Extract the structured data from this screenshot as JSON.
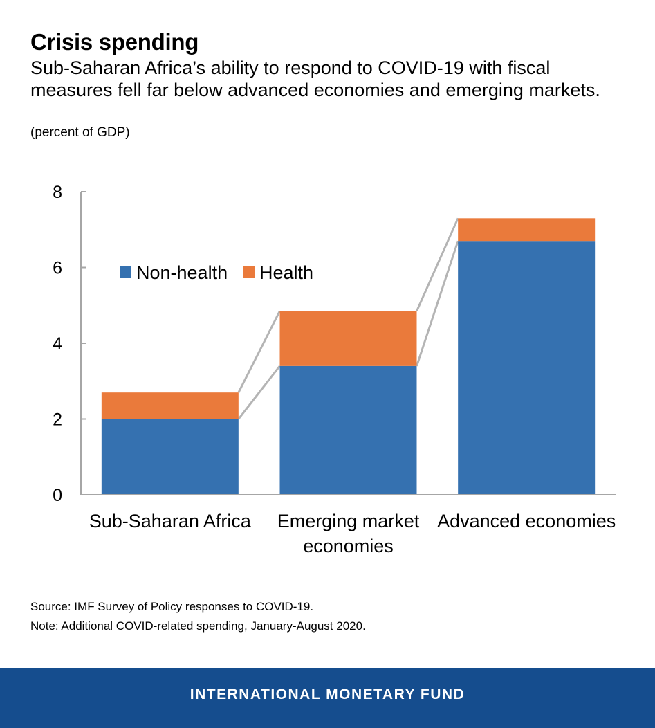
{
  "header": {
    "title": "Crisis spending",
    "subtitle": "Sub-Saharan Africa’s ability to respond to COVID-19 with fiscal measures fell far below advanced economies and emerging markets.",
    "unit": "(percent of GDP)"
  },
  "chart_data": {
    "type": "bar",
    "stacked": true,
    "categories": [
      [
        "Sub-Saharan Africa"
      ],
      [
        "Emerging market",
        "economies"
      ],
      [
        "Advanced economies"
      ]
    ],
    "series": [
      {
        "name": "Non-health",
        "color": "#3571b0",
        "values": [
          2.0,
          3.4,
          6.7
        ]
      },
      {
        "name": "Health",
        "color": "#ea7a3b",
        "values": [
          0.7,
          1.45,
          0.6
        ]
      }
    ],
    "ylim": [
      0,
      8
    ],
    "yticks": [
      0,
      2,
      4,
      6,
      8
    ],
    "legend_position": "upper-left",
    "connector_lines": true,
    "connector_color": "#b4b4b4"
  },
  "footnotes": {
    "source": "Source: IMF Survey of Policy responses to COVID-19.",
    "note": "Note: Additional COVID-related spending, January-August 2020."
  },
  "footer": {
    "label": "INTERNATIONAL MONETARY FUND",
    "background": "#154d8e"
  }
}
